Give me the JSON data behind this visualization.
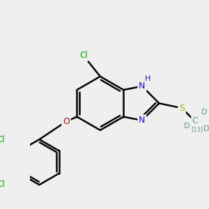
{
  "bg_color": "#efefef",
  "bond_color": "#000000",
  "bond_width": 1.8,
  "figsize": [
    3.0,
    3.0
  ],
  "dpi": 100,
  "colors": {
    "N": "#1414cc",
    "S": "#aaaa00",
    "O": "#cc0000",
    "Cl": "#00aa00",
    "C": "#333333",
    "D": "#5a9a8a",
    "bond": "#000000",
    "H": "#1414cc"
  }
}
